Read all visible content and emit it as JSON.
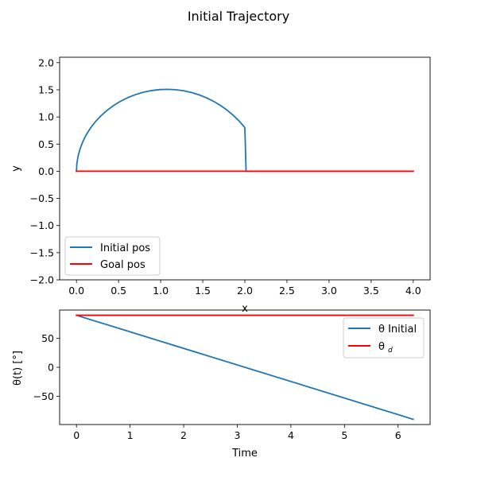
{
  "figure": {
    "suptitle": "Initial Trajectory",
    "background": "#ffffff"
  },
  "chart_data": [
    {
      "type": "line",
      "title": "",
      "xlabel": "x",
      "ylabel": "y",
      "xlim": [
        -0.2,
        4.2
      ],
      "ylim": [
        -2.0,
        2.1
      ],
      "xticks": [
        0.0,
        0.5,
        1.0,
        1.5,
        2.0,
        2.5,
        3.0,
        3.5,
        4.0
      ],
      "xtick_labels": [
        "0.0",
        "0.5",
        "1.0",
        "1.5",
        "2.0",
        "2.5",
        "3.0",
        "3.5",
        "4.0"
      ],
      "yticks": [
        -2.0,
        -1.5,
        -1.0,
        -0.5,
        0.0,
        0.5,
        1.0,
        1.5,
        2.0
      ],
      "ytick_labels": [
        "−2.0",
        "−1.5",
        "−1.0",
        "−0.5",
        "0.0",
        "0.5",
        "1.0",
        "1.5",
        "2.0"
      ],
      "grid": false,
      "legend_placement": "lower-left",
      "series": [
        {
          "name": "Initial pos",
          "color": "#1f77b4",
          "x": [
            0.0,
            0.0049,
            0.0195,
            0.0437,
            0.077,
            0.1191,
            0.1695,
            0.2276,
            0.2929,
            0.3647,
            0.4423,
            0.5249,
            0.6119,
            0.7024,
            0.7958,
            0.8912,
            0.9877,
            1.0847,
            1.1813,
            1.2767,
            1.3704,
            1.4616,
            1.5496,
            1.634,
            1.7143,
            1.79,
            1.8607,
            1.926,
            1.9854,
            2.0,
            2.0146,
            2.074,
            2.1393,
            2.21,
            2.2857,
            2.366,
            2.4504,
            2.5384,
            2.6296,
            2.7233,
            2.8187,
            2.9153,
            3.0123,
            3.1088,
            3.2042,
            3.2976,
            3.3881,
            3.4751,
            3.5577,
            3.6353,
            3.7071,
            3.7724,
            3.8305,
            3.8809,
            3.923,
            3.9563,
            3.9805,
            3.9951,
            4.0
          ],
          "y": [
            0.0,
            0.1408,
            0.2804,
            0.4175,
            0.5509,
            0.6795,
            0.8021,
            0.9176,
            1.0251,
            1.1236,
            1.2123,
            1.2905,
            1.3575,
            1.4127,
            1.4557,
            1.4862,
            1.504,
            1.5089,
            1.5011,
            1.4808,
            1.4483,
            1.4042,
            1.3489,
            1.2833,
            1.2081,
            1.1243,
            1.0329,
            0.9351,
            0.8321,
            0.8,
            0.0,
            0.0,
            0.0,
            0.0,
            0.0,
            0.0,
            0.0,
            0.0,
            0.0,
            0.0,
            0.0,
            0.0,
            0.0,
            0.0,
            0.0,
            0.0,
            0.0,
            0.0,
            0.0,
            0.0,
            0.0,
            0.0,
            0.0,
            0.0,
            0.0,
            0.0,
            0.0,
            0.0,
            0.0
          ]
        },
        {
          "name": "Goal pos",
          "color": "#ff0000",
          "x": [
            0.0,
            4.0
          ],
          "y": [
            0.0,
            0.0
          ]
        }
      ]
    },
    {
      "type": "line",
      "title": "",
      "xlabel": "Time",
      "ylabel": "θ(t) [°]",
      "xlim": [
        -0.3142,
        6.5973
      ],
      "ylim": [
        -99.0,
        99.0
      ],
      "xticks": [
        0,
        1,
        2,
        3,
        4,
        5,
        6
      ],
      "xtick_labels": [
        "0",
        "1",
        "2",
        "3",
        "4",
        "5",
        "6"
      ],
      "yticks": [
        -50,
        0,
        50
      ],
      "ytick_labels": [
        "−50",
        "0",
        "50"
      ],
      "grid": false,
      "legend_placement": "upper-right",
      "series": [
        {
          "name": "θ Initial",
          "color": "#1f77b4",
          "x": [
            0.0,
            6.2832
          ],
          "y": [
            90.0,
            -90.0
          ]
        },
        {
          "name": "θ d",
          "color": "#ff0000",
          "x": [
            0.0,
            6.2832
          ],
          "y": [
            90.0,
            90.0
          ]
        }
      ]
    }
  ]
}
